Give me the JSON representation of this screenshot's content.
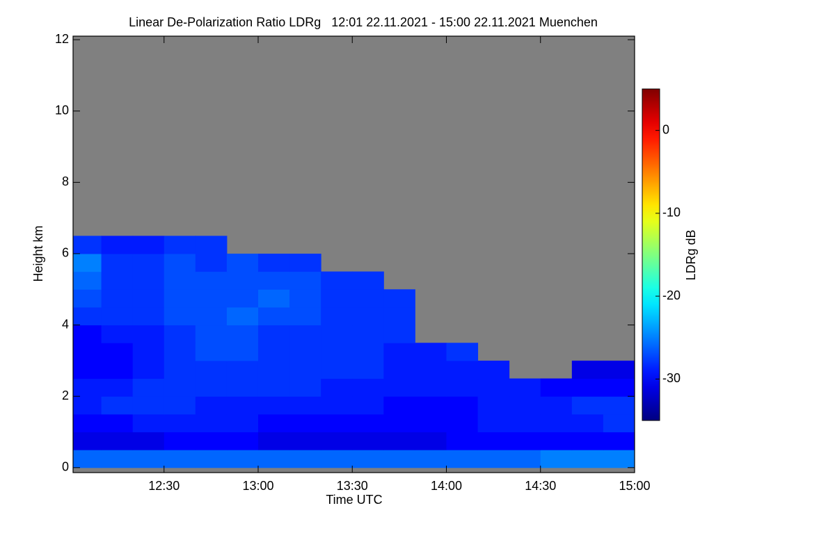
{
  "chart_data": {
    "type": "heatmap",
    "title": "Linear De-Polarization Ratio LDRg   12:01 22.11.2021 - 15:00 22.11.2021 Muenchen",
    "x_label": "Time UTC",
    "y_label": "Height km",
    "colorbar_label": "LDRg dB",
    "colorscale": "jet",
    "nodata_color": "#808080",
    "xlim": [
      1,
      180
    ],
    "xticks": [
      {
        "value": 30,
        "label": "12:30"
      },
      {
        "value": 60,
        "label": "13:00"
      },
      {
        "value": 90,
        "label": "13:30"
      },
      {
        "value": 120,
        "label": "14:00"
      },
      {
        "value": 150,
        "label": "14:30"
      },
      {
        "value": 180,
        "label": "15:00"
      }
    ],
    "ylim": [
      -0.14,
      12.1
    ],
    "yticks": [
      0,
      2,
      4,
      6,
      8,
      10,
      12
    ],
    "zlim": [
      -35,
      5
    ],
    "zticks": [
      0,
      -10,
      -20,
      -30
    ],
    "x": [
      5,
      15,
      25,
      35,
      45,
      55,
      65,
      75,
      85,
      95,
      105,
      115,
      125,
      135,
      145,
      155,
      165,
      175
    ],
    "y": [
      0.25,
      0.75,
      1.25,
      1.75,
      2.25,
      2.75,
      3.25,
      3.75,
      4.25,
      4.75,
      5.25,
      5.75,
      6.25
    ],
    "z": [
      [
        -26,
        -26,
        -26,
        -26,
        -26,
        -26,
        -26,
        -26,
        -26,
        -26,
        -26,
        -26,
        -26,
        -26,
        -26,
        -25,
        -25,
        -25
      ],
      [
        -31,
        -31,
        -31,
        -30,
        -30,
        -30,
        -31,
        -31,
        -31,
        -31,
        -31,
        -31,
        -30,
        -30,
        -30,
        -30,
        -30,
        -30
      ],
      [
        -30,
        -30,
        -29,
        -29,
        -29,
        -29,
        -30,
        -30,
        -30,
        -30,
        -30,
        -30,
        -30,
        -29,
        -29,
        -29,
        -29,
        -28
      ],
      [
        -29,
        -28,
        -28,
        -28,
        -29,
        -29,
        -29,
        -29,
        -29,
        -29,
        -30,
        -30,
        -30,
        -29,
        -29,
        -29,
        -28,
        -28
      ],
      [
        -29,
        -29,
        -28,
        -28,
        -28,
        -28,
        -28,
        -28,
        -29,
        -29,
        -29,
        -29,
        -29,
        -29,
        -29,
        -30,
        -30,
        -30
      ],
      [
        -30,
        -30,
        -29,
        -28,
        -28,
        -28,
        -28,
        -28,
        -28,
        -28,
        -29,
        -29,
        -29,
        -29,
        null,
        null,
        -31,
        -31
      ],
      [
        -30,
        -30,
        -29,
        -28,
        -27,
        -27,
        -28,
        -28,
        -28,
        -28,
        -29,
        -29,
        -28,
        null,
        null,
        null,
        null,
        null
      ],
      [
        -30,
        -29,
        -29,
        -28,
        -27,
        -27,
        -28,
        -28,
        -28,
        -28,
        -28,
        null,
        null,
        null,
        null,
        null,
        null,
        null
      ],
      [
        -28,
        -28,
        -28,
        -27,
        -27,
        -26,
        -27,
        -27,
        -28,
        -28,
        -28,
        null,
        null,
        null,
        null,
        null,
        null,
        null
      ],
      [
        -27,
        -28,
        -28,
        -27,
        -27,
        -27,
        -26,
        -27,
        -28,
        -28,
        -28,
        null,
        null,
        null,
        null,
        null,
        null,
        null
      ],
      [
        -26,
        -28,
        -28,
        -27,
        -27,
        -27,
        -27,
        -27,
        -28,
        -28,
        null,
        null,
        null,
        null,
        null,
        null,
        null,
        null
      ],
      [
        -25,
        -28,
        -28,
        -27,
        -28,
        -27,
        -28,
        -28,
        null,
        null,
        null,
        null,
        null,
        null,
        null,
        null,
        null,
        null
      ],
      [
        -28,
        -29,
        -29,
        -28,
        -28,
        null,
        null,
        null,
        null,
        null,
        null,
        null,
        null,
        null,
        null,
        null,
        null,
        null
      ]
    ]
  }
}
